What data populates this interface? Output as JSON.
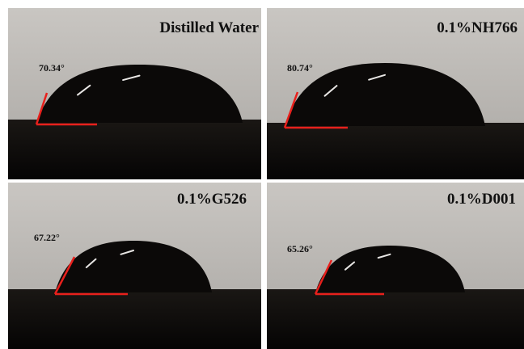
{
  "panels": [
    {
      "title": "Distilled Water",
      "angle": "70.34°"
    },
    {
      "title": "0.1%NH766",
      "angle": "80.74°"
    },
    {
      "title": "0.1%G526",
      "angle": "67.22°"
    },
    {
      "title": "0.1%D001",
      "angle": "65.26°"
    }
  ]
}
